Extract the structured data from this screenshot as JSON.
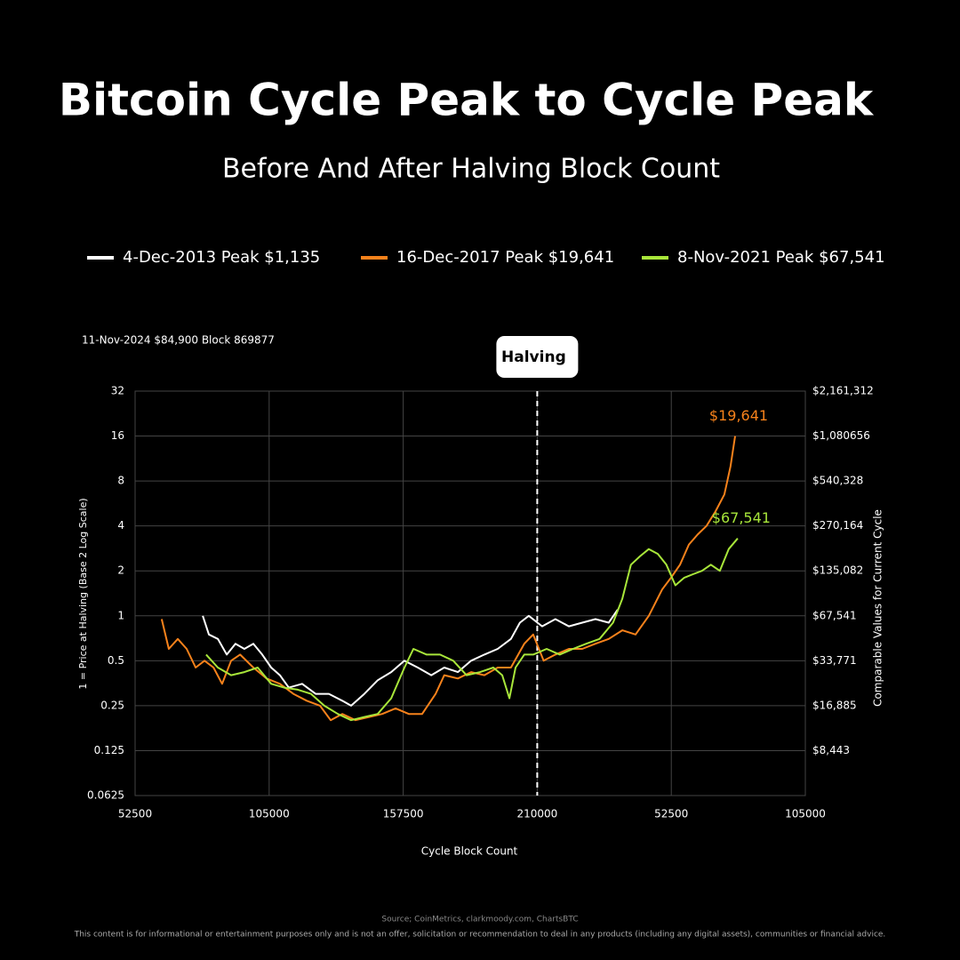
{
  "chart_data": {
    "type": "line",
    "title": "Bitcoin Cycle Peak to Cycle Peak",
    "subtitle": "Before And After Halving Block Count",
    "note": "11-Nov-2024 $84,900 Block 869877",
    "x_label": "Cycle Block Count",
    "y_label": "1 = Price at Halving (Base 2 Log Scale)",
    "y2_label": "Comparable Values for Current Cycle",
    "source": "Source; CoinMetrics, clarkmoody.com, ChartsBTC",
    "disclaimer": "This content is for informational or entertainment purposes only and is not an offer, solicitation or recommendation to deal in any products (including any digital assets), communities or financial advice.",
    "y_scale": "log2",
    "grid": true,
    "xlim": [
      52500,
      315000
    ],
    "xticks": [
      52500,
      105000,
      157500,
      210000,
      {
        "value": 262500,
        "label": "52500"
      },
      {
        "value": 315000,
        "label": "105000"
      }
    ],
    "ylim": [
      0.0625,
      32
    ],
    "yticks": [
      0.0625,
      0.125,
      0.25,
      0.5,
      1,
      2,
      4,
      8,
      16,
      32
    ],
    "y2lim": [
      4221.3125,
      2161312
    ],
    "y2ticks": [
      {
        "value": 8443,
        "label": "$8,443"
      },
      {
        "value": 16885,
        "label": "$16,885"
      },
      {
        "value": 33771,
        "label": "$33,771"
      },
      {
        "value": 67541,
        "label": "$67,541"
      },
      {
        "value": 135082,
        "label": "$135,082"
      },
      {
        "value": 270164,
        "label": "$270,164"
      },
      {
        "value": 540328,
        "label": "$540,328"
      },
      {
        "value": 1080656,
        "label": "$1,080656"
      },
      {
        "value": 2161312,
        "label": "$2,161,312"
      }
    ],
    "vline": {
      "x": 210000,
      "label": "Halving"
    },
    "series": [
      {
        "name": "4-Dec-2013 Peak $1,135",
        "color": "#ffffff",
        "x": [
          79000,
          81400,
          84900,
          88400,
          91800,
          95300,
          98800,
          102300,
          105800,
          109200,
          112700,
          117900,
          123200,
          128400,
          133600,
          137100,
          142300,
          147500,
          152800,
          158000,
          163200,
          168500,
          173600,
          178900,
          184100,
          189300,
          194500,
          199700,
          203200,
          206700,
          211900,
          217100,
          222400,
          227600,
          232800,
          238000,
          241500
        ],
        "values": [
          1.0,
          0.75,
          0.7,
          0.55,
          0.65,
          0.6,
          0.65,
          0.55,
          0.45,
          0.4,
          0.33,
          0.35,
          0.3,
          0.3,
          0.27,
          0.25,
          0.3,
          0.37,
          0.42,
          0.5,
          0.45,
          0.4,
          0.45,
          0.42,
          0.5,
          0.55,
          0.6,
          0.7,
          0.9,
          1.0,
          0.85,
          0.95,
          0.85,
          0.9,
          0.95,
          0.9,
          1.1
        ]
      },
      {
        "name": "16-Dec-2017 Peak $19,641",
        "color": "#f7821b",
        "end_label": "$19,641",
        "x": [
          62900,
          65700,
          69200,
          72700,
          76200,
          79700,
          83200,
          86600,
          90100,
          93600,
          98800,
          104000,
          109200,
          114500,
          119700,
          124900,
          129100,
          133600,
          138800,
          144100,
          149300,
          154500,
          159700,
          164900,
          170200,
          173600,
          178900,
          184100,
          189300,
          194500,
          199700,
          204900,
          208400,
          212500,
          217100,
          222400,
          227600,
          232800,
          238000,
          243300,
          248500,
          253700,
          258900,
          262400,
          265900,
          269400,
          272800,
          276300,
          279800,
          283300,
          285700,
          287500
        ],
        "values": [
          0.95,
          0.6,
          0.7,
          0.6,
          0.45,
          0.5,
          0.45,
          0.35,
          0.5,
          0.55,
          0.45,
          0.38,
          0.35,
          0.3,
          0.27,
          0.25,
          0.2,
          0.22,
          0.2,
          0.21,
          0.22,
          0.24,
          0.22,
          0.22,
          0.3,
          0.4,
          0.38,
          0.42,
          0.4,
          0.45,
          0.45,
          0.65,
          0.75,
          0.5,
          0.55,
          0.6,
          0.6,
          0.65,
          0.7,
          0.8,
          0.75,
          1.0,
          1.5,
          1.8,
          2.2,
          3.0,
          3.5,
          4.0,
          5.0,
          6.5,
          10,
          16
        ]
      },
      {
        "name": "8-Nov-2021 Peak $67,541",
        "color": "#a8e63a",
        "end_label": "$67,541",
        "x": [
          80300,
          84900,
          90100,
          95300,
          100500,
          105800,
          110900,
          116200,
          121400,
          126600,
          131900,
          137100,
          142300,
          147500,
          152800,
          158000,
          161500,
          166700,
          171900,
          177100,
          182300,
          187600,
          192800,
          196300,
          199100,
          201500,
          204900,
          208400,
          213700,
          218800,
          224000,
          229200,
          234400,
          239700,
          243300,
          246700,
          250200,
          253700,
          257200,
          260600,
          264100,
          267600,
          271000,
          274500,
          278000,
          281500,
          285000,
          288500
        ],
        "values": [
          0.55,
          0.45,
          0.4,
          0.42,
          0.45,
          0.35,
          0.33,
          0.32,
          0.3,
          0.25,
          0.22,
          0.2,
          0.21,
          0.22,
          0.28,
          0.45,
          0.6,
          0.55,
          0.55,
          0.5,
          0.4,
          0.42,
          0.45,
          0.4,
          0.28,
          0.45,
          0.55,
          0.55,
          0.6,
          0.55,
          0.6,
          0.65,
          0.7,
          0.9,
          1.3,
          2.2,
          2.5,
          2.8,
          2.6,
          2.2,
          1.6,
          1.8,
          1.9,
          2.0,
          2.2,
          2.0,
          2.8,
          3.3
        ]
      }
    ]
  }
}
